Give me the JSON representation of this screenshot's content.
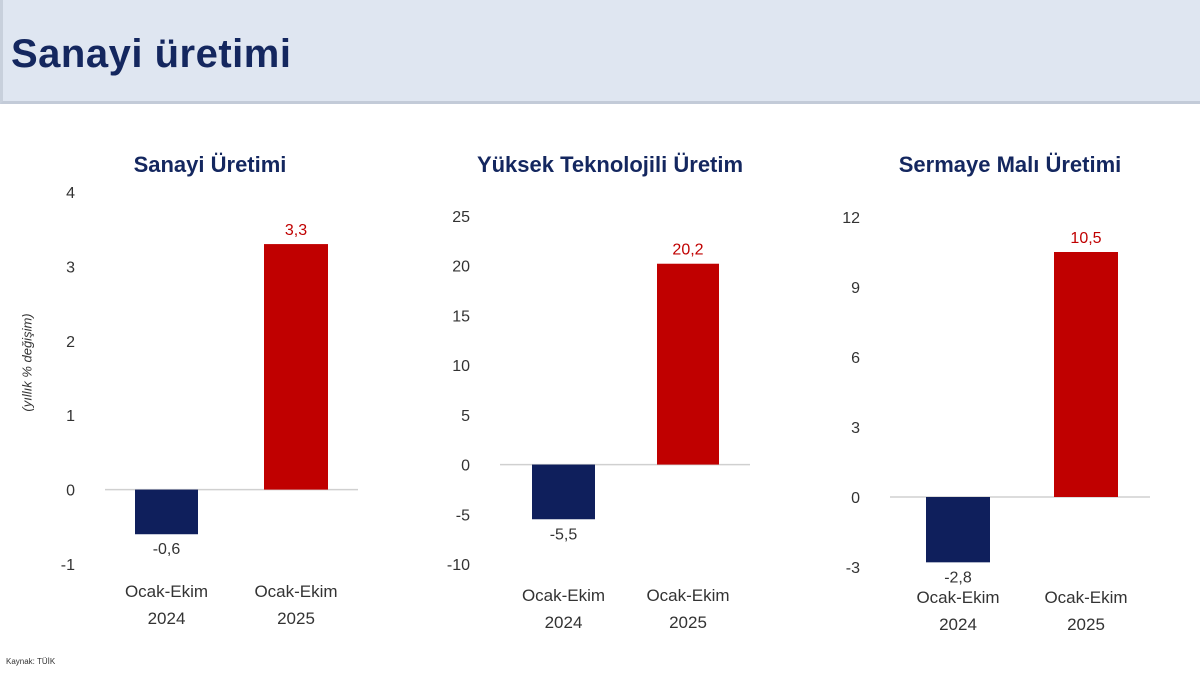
{
  "header": {
    "title": "Sanayi üretimi"
  },
  "source": "Kaynak: TÜİK",
  "colors": {
    "2024": "#0f1f5c",
    "2025": "#c00000",
    "title": "#14275f",
    "text": "#333333"
  },
  "chart_data": [
    {
      "type": "bar",
      "title": "Sanayi Üretimi",
      "ylabel": "(yıllık % değişim)",
      "categories": [
        [
          "Ocak-Ekim",
          "2024"
        ],
        [
          "Ocak-Ekim",
          "2025"
        ]
      ],
      "values": [
        -0.6,
        3.3
      ],
      "data_labels": [
        "-0,6",
        "3,3"
      ],
      "yticks": [
        -1,
        0,
        1,
        2,
        3,
        4
      ],
      "ylim": [
        -1,
        4
      ]
    },
    {
      "type": "bar",
      "title": "Yüksek Teknolojili Üretim",
      "categories": [
        [
          "Ocak-Ekim",
          "2024"
        ],
        [
          "Ocak-Ekim",
          "2025"
        ]
      ],
      "values": [
        -5.5,
        20.2
      ],
      "data_labels": [
        "-5,5",
        "20,2"
      ],
      "yticks": [
        -10,
        -5,
        0,
        5,
        10,
        15,
        20,
        25
      ],
      "ylim": [
        -10,
        25
      ]
    },
    {
      "type": "bar",
      "title": "Sermaye Malı Üretimi",
      "categories": [
        [
          "Ocak-Ekim",
          "2024"
        ],
        [
          "Ocak-Ekim",
          "2025"
        ]
      ],
      "values": [
        -2.8,
        10.5
      ],
      "data_labels": [
        "-2,8",
        "10,5"
      ],
      "yticks": [
        -3,
        0,
        3,
        6,
        9,
        12
      ],
      "ylim": [
        -3,
        12
      ]
    }
  ]
}
